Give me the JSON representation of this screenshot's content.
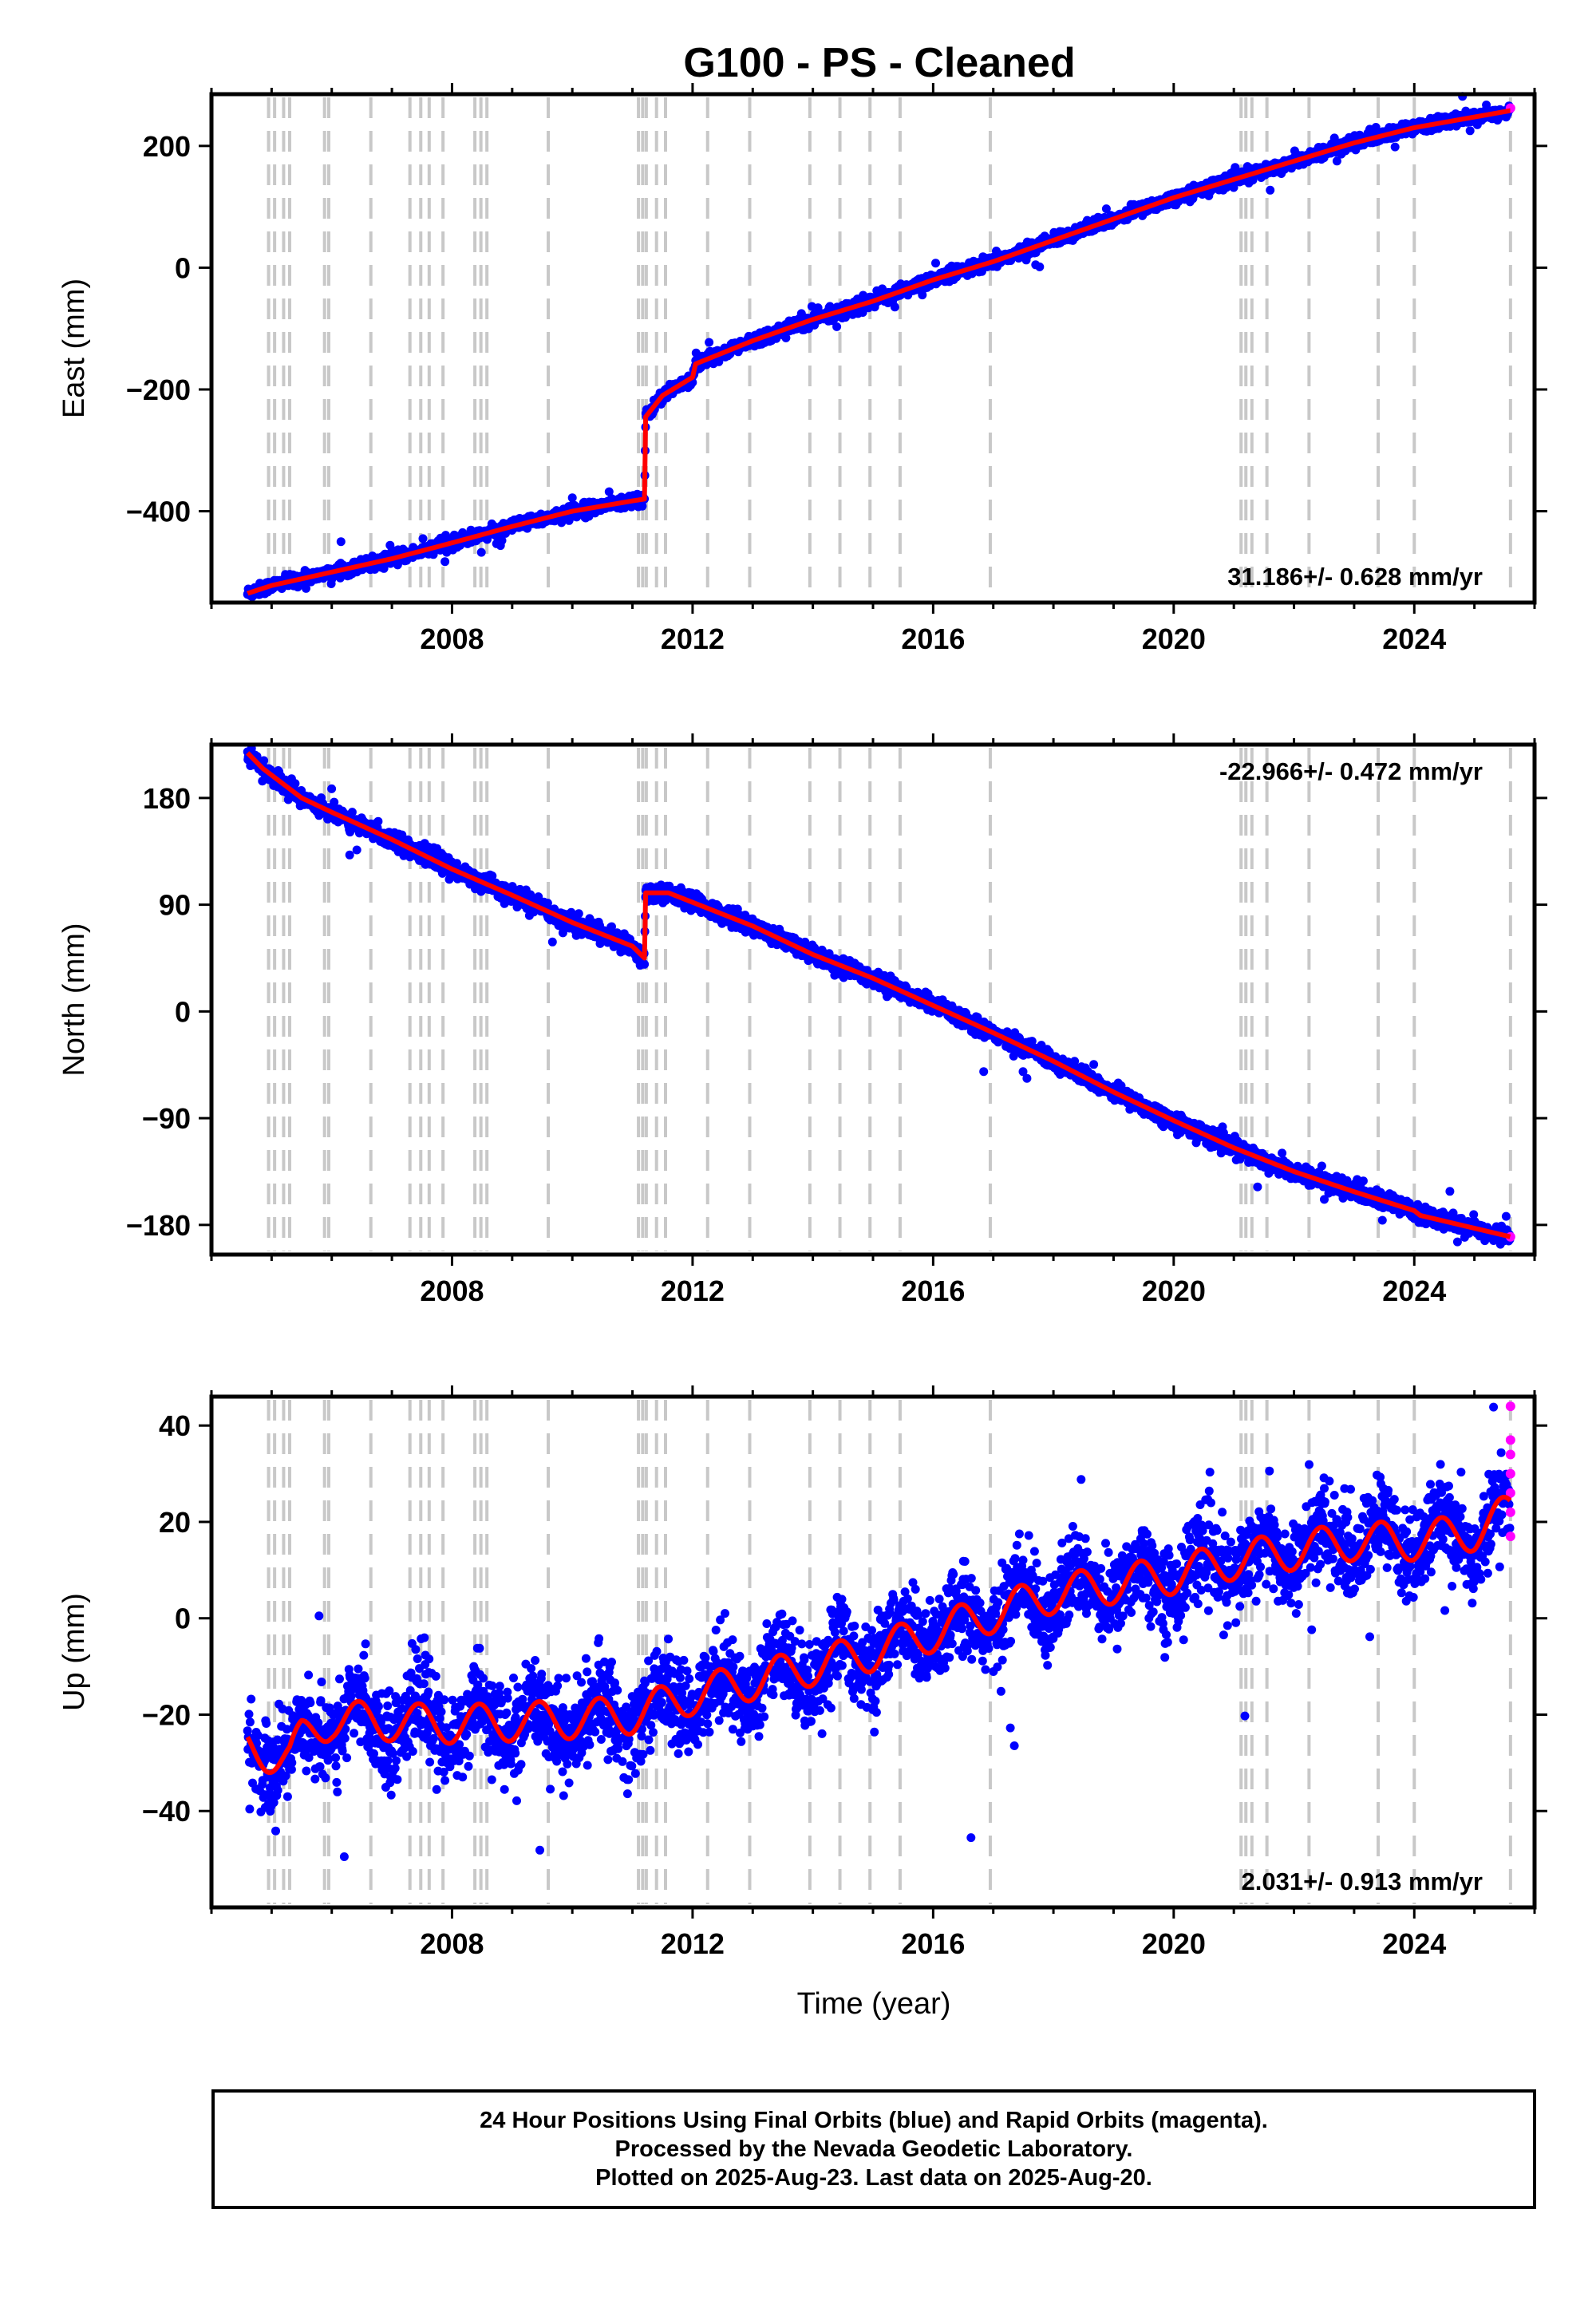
{
  "title": "G100  - PS - Cleaned",
  "xlabel": "Time (year)",
  "colors": {
    "final_orbits": "#0000ff",
    "rapid_orbits": "#ff00ff",
    "model": "#ff0000",
    "event_lines": "#c8c8c8"
  },
  "caption": [
    "24 Hour Positions Using Final Orbits (blue) and Rapid Orbits (magenta).",
    "Processed by the Nevada Geodetic Laboratory.",
    "Plotted on 2025-Aug-23. Last data on 2025-Aug-20."
  ],
  "chart_data": [
    {
      "type": "scatter",
      "ylabel": "East (mm)",
      "rate_label": "31.186+/- 0.628 mm/yr",
      "rate_position": "bottom-right",
      "xlim": [
        2004.0,
        2026.0
      ],
      "ylim": [
        -550,
        285
      ],
      "x_ticks": [
        2008,
        2012,
        2016,
        2020,
        2024
      ],
      "y_ticks": [
        200,
        0,
        -200,
        -400
      ],
      "y_tick_labels": [
        "200",
        "0",
        "−200",
        "−400"
      ],
      "trend": {
        "x": [
          2004.6,
          2005.0,
          2006.0,
          2007.0,
          2008.0,
          2009.0,
          2010.0,
          2011.0,
          2011.2,
          2011.22,
          2011.5,
          2012.0,
          2012.05,
          2013.0,
          2014.0,
          2015.0,
          2016.0,
          2017.0,
          2018.0,
          2019.0,
          2020.0,
          2021.0,
          2022.0,
          2023.0,
          2024.0,
          2025.6
        ],
        "y": [
          -535,
          -522,
          -500,
          -478,
          -452,
          -425,
          -400,
          -383,
          -380,
          -245,
          -210,
          -180,
          -158,
          -120,
          -85,
          -55,
          -20,
          10,
          45,
          80,
          115,
          145,
          175,
          205,
          230,
          258
        ]
      },
      "noise_mm": 5,
      "seasonal_mm": 0,
      "event_lines": [
        2004.95,
        2005.05,
        2005.2,
        2005.3,
        2005.88,
        2005.95,
        2006.65,
        2007.3,
        2007.48,
        2007.62,
        2007.85,
        2008.38,
        2008.48,
        2008.58,
        2009.6,
        2011.1,
        2011.17,
        2011.23,
        2011.4,
        2011.55,
        2012.25,
        2012.95,
        2013.95,
        2014.45,
        2014.95,
        2015.45,
        2016.95,
        2021.12,
        2021.2,
        2021.3,
        2021.55,
        2022.25,
        2023.4,
        2024.0,
        2025.6
      ],
      "rapid_points": {
        "x": [
          2025.6
        ],
        "y": [
          262
        ]
      }
    },
    {
      "type": "scatter",
      "ylabel": "North (mm)",
      "rate_label": "-22.966+/- 0.472 mm/yr",
      "rate_position": "top-right",
      "xlim": [
        2004.0,
        2026.0
      ],
      "ylim": [
        -205,
        225
      ],
      "x_ticks": [
        2008,
        2012,
        2016,
        2020,
        2024
      ],
      "y_ticks": [
        180,
        90,
        0,
        -90,
        -180
      ],
      "y_tick_labels": [
        "180",
        "90",
        "0",
        "−90",
        "−180"
      ],
      "trend": {
        "x": [
          2004.6,
          2004.85,
          2005.5,
          2006.0,
          2007.0,
          2008.0,
          2009.0,
          2010.0,
          2011.0,
          2011.2,
          2011.22,
          2011.6,
          2012.0,
          2013.0,
          2014.0,
          2015.0,
          2016.0,
          2017.0,
          2018.0,
          2019.0,
          2020.0,
          2021.0,
          2022.0,
          2023.0,
          2024.0,
          2024.1,
          2025.6
        ],
        "y": [
          218,
          205,
          180,
          168,
          145,
          120,
          98,
          75,
          55,
          45,
          100,
          100,
          92,
          72,
          48,
          28,
          5,
          -18,
          -42,
          -68,
          -92,
          -115,
          -135,
          -152,
          -168,
          -172,
          -190
        ]
      },
      "noise_mm": 3.5,
      "seasonal_mm": 0,
      "event_lines": [
        2004.95,
        2005.05,
        2005.2,
        2005.3,
        2005.88,
        2005.95,
        2006.65,
        2007.3,
        2007.48,
        2007.62,
        2007.85,
        2008.38,
        2008.48,
        2008.58,
        2009.6,
        2011.1,
        2011.17,
        2011.23,
        2011.4,
        2011.55,
        2012.25,
        2012.95,
        2013.95,
        2014.45,
        2014.95,
        2015.45,
        2016.95,
        2021.12,
        2021.2,
        2021.3,
        2021.55,
        2022.25,
        2023.4,
        2024.0,
        2025.6
      ],
      "rapid_points": {
        "x": [
          2025.6
        ],
        "y": [
          -190
        ]
      }
    },
    {
      "type": "scatter",
      "ylabel": "Up (mm)",
      "rate_label": "2.031+/- 0.913 mm/yr",
      "rate_position": "bottom-right",
      "xlim": [
        2004.0,
        2026.0
      ],
      "ylim": [
        -60,
        46
      ],
      "x_ticks": [
        2008,
        2012,
        2016,
        2020,
        2024
      ],
      "y_ticks": [
        40,
        20,
        0,
        -20,
        -40
      ],
      "y_tick_labels": [
        "40",
        "20",
        "0",
        "−20",
        "−40"
      ],
      "trend": {
        "x": [
          2004.6,
          2005.3,
          2005.5,
          2006.0,
          2008.0,
          2010.0,
          2011.0,
          2012.0,
          2013.0,
          2014.0,
          2015.0,
          2016.0,
          2017.0,
          2017.5,
          2018.0,
          2019.0,
          2020.0,
          2021.0,
          2022.0,
          2023.0,
          2024.0,
          2025.0,
          2025.6
        ],
        "y": [
          -27,
          -29,
          -25,
          -21,
          -22,
          -21,
          -20,
          -16,
          -13,
          -10,
          -7,
          -3,
          1,
          3,
          5,
          7,
          9,
          12,
          14,
          16,
          16,
          18,
          22
        ]
      },
      "noise_mm": 4.5,
      "seasonal_mm": 4,
      "event_lines": [
        2004.95,
        2005.05,
        2005.2,
        2005.3,
        2005.88,
        2005.95,
        2006.65,
        2007.3,
        2007.48,
        2007.62,
        2007.85,
        2008.38,
        2008.48,
        2008.58,
        2009.6,
        2011.1,
        2011.17,
        2011.23,
        2011.4,
        2011.55,
        2012.25,
        2012.95,
        2013.95,
        2014.45,
        2014.95,
        2015.45,
        2016.95,
        2021.12,
        2021.2,
        2021.3,
        2021.55,
        2022.25,
        2023.4,
        2024.0,
        2025.6
      ],
      "rapid_points": {
        "x": [
          2025.6,
          2025.6,
          2025.6,
          2025.6,
          2025.6,
          2025.6,
          2025.6
        ],
        "y": [
          44,
          37,
          34,
          30,
          26,
          22,
          17
        ]
      }
    }
  ]
}
